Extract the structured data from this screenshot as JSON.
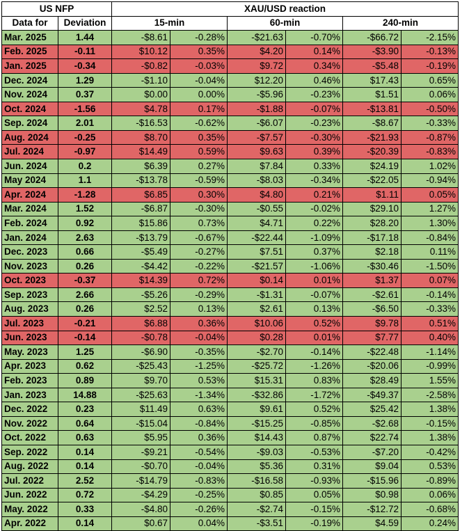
{
  "colors": {
    "positive_row": "#a9d08e",
    "negative_row": "#e06666"
  },
  "headers": {
    "us_nfp": "US NFP",
    "reaction": "XAU/USD reaction",
    "data_for": "Data for",
    "deviation": "Deviation",
    "m15": "15-min",
    "m60": "60-min",
    "m240": "240-min"
  },
  "rows": [
    {
      "date": "Mar. 2025",
      "dev": "1.44",
      "u15": "-$8.61",
      "p15": "-0.28%",
      "u60": "-$21.63",
      "p60": "-0.70%",
      "u240": "-$66.72",
      "p240": "-2.15%",
      "color": "green"
    },
    {
      "date": "Feb. 2025",
      "dev": "-0.11",
      "u15": "$10.12",
      "p15": "0.35%",
      "u60": "$4.20",
      "p60": "0.14%",
      "u240": "-$3.90",
      "p240": "-0.13%",
      "color": "red"
    },
    {
      "date": "Jan. 2025",
      "dev": "-0.34",
      "u15": "-$0.82",
      "p15": "-0.03%",
      "u60": "$9.72",
      "p60": "0.34%",
      "u240": "-$5.48",
      "p240": "-0.19%",
      "color": "red"
    },
    {
      "date": "Dec. 2024",
      "dev": "1.29",
      "u15": "-$1.10",
      "p15": "-0.04%",
      "u60": "$12.20",
      "p60": "0.46%",
      "u240": "$17.43",
      "p240": "0.65%",
      "color": "green"
    },
    {
      "date": "Nov. 2024",
      "dev": "0.37",
      "u15": "$0.00",
      "p15": "0.00%",
      "u60": "-$5.96",
      "p60": "-0.23%",
      "u240": "$1.51",
      "p240": "0.06%",
      "color": "green"
    },
    {
      "date": "Oct. 2024",
      "dev": "-1.56",
      "u15": "$4.78",
      "p15": "0.17%",
      "u60": "-$1.88",
      "p60": "-0.07%",
      "u240": "-$13.81",
      "p240": "-0.50%",
      "color": "red"
    },
    {
      "date": "Sep. 2024",
      "dev": "2.01",
      "u15": "-$16.53",
      "p15": "-0.62%",
      "u60": "-$6.07",
      "p60": "-0.23%",
      "u240": "-$8.67",
      "p240": "-0.33%",
      "color": "green"
    },
    {
      "date": "Aug. 2024",
      "dev": "-0.25",
      "u15": "$8.70",
      "p15": "0.35%",
      "u60": "-$7.57",
      "p60": "-0.30%",
      "u240": "-$21.93",
      "p240": "-0.87%",
      "color": "red"
    },
    {
      "date": "Jul. 2024",
      "dev": "-0.97",
      "u15": "$14.49",
      "p15": "0.59%",
      "u60": "$9.63",
      "p60": "0.39%",
      "u240": "-$20.39",
      "p240": "-0.83%",
      "color": "red"
    },
    {
      "date": "Jun. 2024",
      "dev": "0.2",
      "u15": "$6.39",
      "p15": "0.27%",
      "u60": "$7.84",
      "p60": "0.33%",
      "u240": "$24.19",
      "p240": "1.02%",
      "color": "green"
    },
    {
      "date": "May 2024",
      "dev": "1.1",
      "u15": "-$13.78",
      "p15": "-0.59%",
      "u60": "-$8.03",
      "p60": "-0.34%",
      "u240": "-$22.05",
      "p240": "-0.94%",
      "color": "green"
    },
    {
      "date": "Apr. 2024",
      "dev": "-1.28",
      "u15": "$6.85",
      "p15": "0.30%",
      "u60": "$4.80",
      "p60": "0.21%",
      "u240": "$1.11",
      "p240": "0.05%",
      "color": "red"
    },
    {
      "date": "Mar. 2024",
      "dev": "1.52",
      "u15": "-$6.87",
      "p15": "-0.30%",
      "u60": "-$0.55",
      "p60": "-0.02%",
      "u240": "$29.10",
      "p240": "1.27%",
      "color": "green"
    },
    {
      "date": "Feb. 2024",
      "dev": "0.92",
      "u15": "$15.86",
      "p15": "0.73%",
      "u60": "$4.71",
      "p60": "0.22%",
      "u240": "$28.20",
      "p240": "1.30%",
      "color": "green"
    },
    {
      "date": "Jan. 2024",
      "dev": "2.63",
      "u15": "-$13.79",
      "p15": "-0.67%",
      "u60": "-$22.44",
      "p60": "-1.09%",
      "u240": "-$17.18",
      "p240": "-0.84%",
      "color": "green"
    },
    {
      "date": "Dec. 2023",
      "dev": "0.66",
      "u15": "-$5.49",
      "p15": "-0.27%",
      "u60": "$7.51",
      "p60": "0.37%",
      "u240": "$2.18",
      "p240": "0.11%",
      "color": "green"
    },
    {
      "date": "Nov. 2023",
      "dev": "0.26",
      "u15": "-$4.42",
      "p15": "-0.22%",
      "u60": "-$21.57",
      "p60": "-1.06%",
      "u240": "-$30.46",
      "p240": "-1.50%",
      "color": "green"
    },
    {
      "date": "Oct. 2023",
      "dev": "-0.37",
      "u15": "$14.39",
      "p15": "0.72%",
      "u60": "$0.14",
      "p60": "0.01%",
      "u240": "$1.37",
      "p240": "0.07%",
      "color": "red"
    },
    {
      "date": "Sep. 2023",
      "dev": "2.66",
      "u15": "-$5.26",
      "p15": "-0.29%",
      "u60": "-$1.31",
      "p60": "-0.07%",
      "u240": "-$2.61",
      "p240": "-0.14%",
      "color": "green"
    },
    {
      "date": "Aug. 2023",
      "dev": "0.26",
      "u15": "$2.52",
      "p15": "0.13%",
      "u60": "$2.61",
      "p60": "0.13%",
      "u240": "-$6.50",
      "p240": "-0.33%",
      "color": "green"
    },
    {
      "date": "Jul. 2023",
      "dev": "-0.21",
      "u15": "$6.88",
      "p15": "0.36%",
      "u60": "$10.06",
      "p60": "0.52%",
      "u240": "$9.78",
      "p240": "0.51%",
      "color": "red"
    },
    {
      "date": "Jun. 2023",
      "dev": "-0.14",
      "u15": "-$0.78",
      "p15": "-0.04%",
      "u60": "$0.28",
      "p60": "0.01%",
      "u240": "$7.77",
      "p240": "0.40%",
      "color": "red"
    },
    {
      "date": "May. 2023",
      "dev": "1.25",
      "u15": "-$6.90",
      "p15": "-0.35%",
      "u60": "-$2.70",
      "p60": "-0.14%",
      "u240": "-$22.48",
      "p240": "-1.14%",
      "color": "green"
    },
    {
      "date": "Apr. 2023",
      "dev": "0.62",
      "u15": "-$25.43",
      "p15": "-1.25%",
      "u60": "-$25.72",
      "p60": "-1.26%",
      "u240": "-$20.06",
      "p240": "-0.99%",
      "color": "green"
    },
    {
      "date": "Feb. 2023",
      "dev": "0.89",
      "u15": "$9.70",
      "p15": "0.53%",
      "u60": "$15.31",
      "p60": "0.83%",
      "u240": "$28.49",
      "p240": "1.55%",
      "color": "green"
    },
    {
      "date": "Jan. 2023",
      "dev": "14.88",
      "u15": "-$25.63",
      "p15": "-1.34%",
      "u60": "-$32.86",
      "p60": "-1.72%",
      "u240": "-$49.37",
      "p240": "-2.58%",
      "color": "green"
    },
    {
      "date": "Dec. 2022",
      "dev": "0.23",
      "u15": "$11.49",
      "p15": "0.63%",
      "u60": "$9.61",
      "p60": "0.52%",
      "u240": "$25.42",
      "p240": "1.38%",
      "color": "green"
    },
    {
      "date": "Nov. 2022",
      "dev": "0.64",
      "u15": "-$15.04",
      "p15": "-0.84%",
      "u60": "-$15.25",
      "p60": "-0.85%",
      "u240": "-$2.68",
      "p240": "-0.15%",
      "color": "green"
    },
    {
      "date": "Oct. 2022",
      "dev": "0.63",
      "u15": "$5.95",
      "p15": "0.36%",
      "u60": "$14.43",
      "p60": "0.87%",
      "u240": "$22.74",
      "p240": "1.38%",
      "color": "green"
    },
    {
      "date": "Sep. 2022",
      "dev": "0.14",
      "u15": "-$9.21",
      "p15": "-0.54%",
      "u60": "-$9.03",
      "p60": "-0.53%",
      "u240": "-$7.20",
      "p240": "-0.42%",
      "color": "green"
    },
    {
      "date": "Aug. 2022",
      "dev": "0.14",
      "u15": "-$0.70",
      "p15": "-0.04%",
      "u60": "$5.36",
      "p60": "0.31%",
      "u240": "$9.04",
      "p240": "0.53%",
      "color": "green"
    },
    {
      "date": "Jul. 2022",
      "dev": "2.52",
      "u15": "-$14.79",
      "p15": "-0.83%",
      "u60": "-$16.58",
      "p60": "-0.93%",
      "u240": "-$15.96",
      "p240": "-0.89%",
      "color": "green"
    },
    {
      "date": "Jun. 2022",
      "dev": "0.72",
      "u15": "-$4.29",
      "p15": "-0.25%",
      "u60": "$0.85",
      "p60": "0.05%",
      "u240": "$0.98",
      "p240": "0.06%",
      "color": "green"
    },
    {
      "date": "May. 2022",
      "dev": "0.33",
      "u15": "-$4.80",
      "p15": "-0.26%",
      "u60": "-$2.74",
      "p60": "-0.15%",
      "u240": "-$12.72",
      "p240": "-0.68%",
      "color": "green"
    },
    {
      "date": "Apr. 2022",
      "dev": "0.14",
      "u15": "$0.67",
      "p15": "0.04%",
      "u60": "-$3.51",
      "p60": "-0.19%",
      "u240": "$4.59",
      "p240": "0.24%",
      "color": "green"
    }
  ]
}
